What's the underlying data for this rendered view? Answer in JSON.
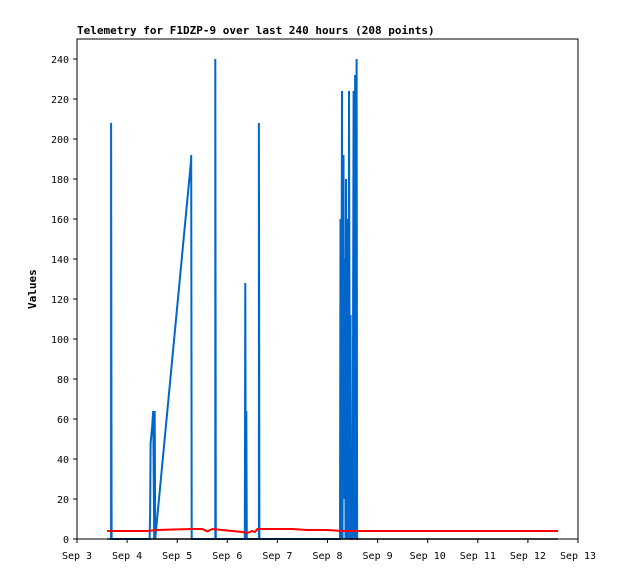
{
  "chart_data": {
    "type": "line",
    "title": "Telemetry for F1DZP-9 over last 240 hours (208 points)",
    "xlabel": "",
    "ylabel": "Values",
    "ylim": [
      0,
      250
    ],
    "xlim": [
      "Sep 3",
      "Sep 13"
    ],
    "y_ticks": [
      0,
      20,
      40,
      60,
      80,
      100,
      120,
      140,
      160,
      180,
      200,
      220,
      240
    ],
    "x_ticks": [
      "Sep 3",
      "Sep 4",
      "Sep 5",
      "Sep 6",
      "Sep 7",
      "Sep 8",
      "Sep 9",
      "Sep 10",
      "Sep 11",
      "Sep 12",
      "Sep 13"
    ],
    "grid": false,
    "legend": "none",
    "colors": {
      "series_1": "#0066cc",
      "series_2": "#ff0000",
      "series_3": "#000000"
    },
    "series": [
      {
        "color": "#0066cc",
        "x": [
          3.68,
          3.68,
          3.69,
          4.45,
          4.46,
          4.47,
          4.5,
          4.52,
          4.54,
          4.55,
          4.56,
          5.28,
          5.28,
          5.29,
          5.76,
          5.76,
          5.77,
          6.35,
          6.36,
          6.37,
          6.38,
          6.39,
          6.63,
          6.63,
          6.64,
          8.25,
          8.26,
          8.27,
          8.29,
          8.3,
          8.31,
          8.32,
          8.33,
          8.34,
          8.35,
          8.36,
          8.37,
          8.38,
          8.39,
          8.4,
          8.41,
          8.42,
          8.43,
          8.45,
          8.46,
          8.47,
          8.48,
          8.5,
          8.52,
          8.53,
          8.55,
          8.57,
          8.58,
          8.59,
          8.6,
          8.62
        ],
        "y": [
          0,
          208,
          0,
          0,
          12,
          48,
          56,
          64,
          0,
          64,
          0,
          190,
          192,
          0,
          0,
          240,
          0,
          0,
          128,
          0,
          64,
          0,
          0,
          208,
          0,
          0,
          160,
          0,
          224,
          0,
          100,
          192,
          40,
          20,
          140,
          0,
          180,
          60,
          100,
          0,
          160,
          0,
          224,
          0,
          112,
          0,
          0,
          0,
          224,
          0,
          232,
          0,
          240,
          0,
          0,
          0
        ],
        "flat_y": 0
      },
      {
        "color": "#ff0000",
        "x": [
          3.6,
          4.4,
          4.6,
          5.0,
          5.3,
          5.5,
          5.6,
          5.7,
          5.9,
          6.1,
          6.3,
          6.4,
          6.5,
          6.55,
          6.6,
          6.7,
          7.0,
          7.3,
          7.6,
          8.0,
          8.3,
          8.6,
          9.0,
          10.0,
          11.0,
          12.0,
          12.6
        ],
        "y": [
          4,
          4,
          4.5,
          4.8,
          5,
          5,
          3.8,
          5,
          4.5,
          4,
          3.5,
          3,
          4,
          3.5,
          5,
          5,
          5,
          5,
          4.5,
          4.5,
          4,
          4,
          4,
          4,
          4,
          4,
          4
        ]
      },
      {
        "color": "#000000",
        "x": [
          3.6,
          12.6
        ],
        "y": [
          0,
          0
        ]
      }
    ]
  }
}
